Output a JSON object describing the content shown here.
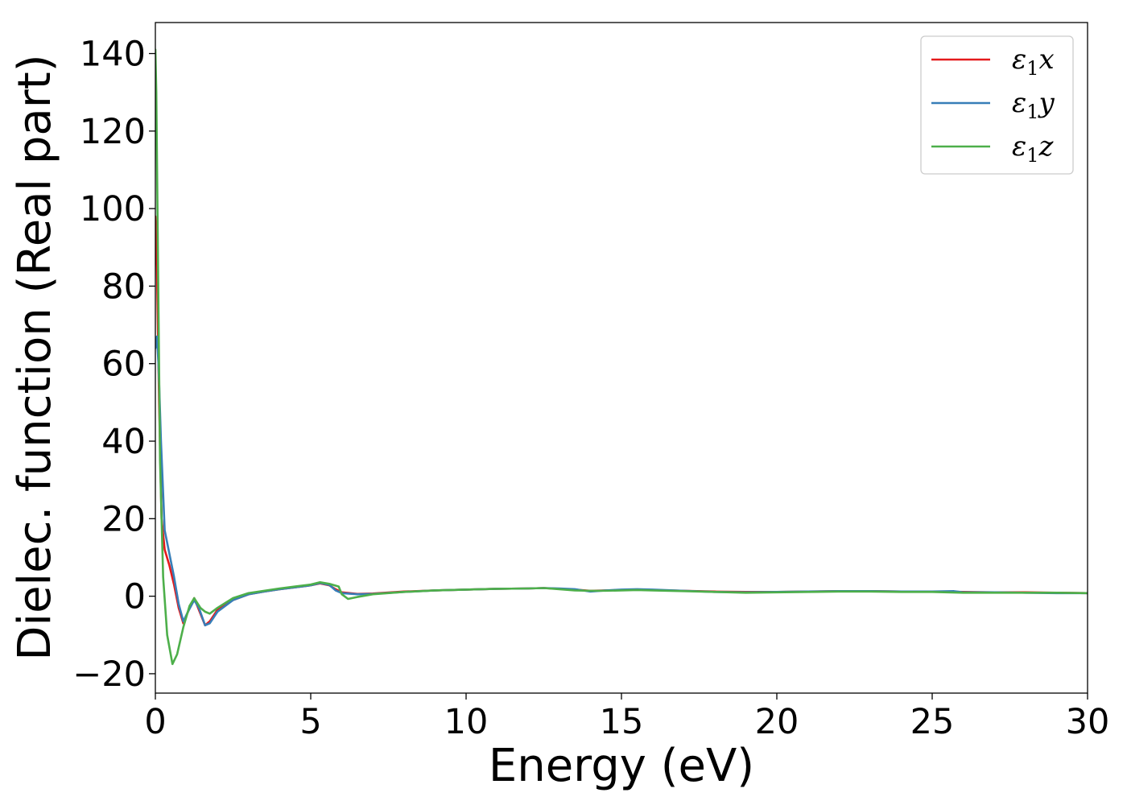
{
  "chart_data": {
    "type": "line",
    "title": "",
    "xlabel": "Energy (eV)",
    "ylabel": "Dielec. function (Real part)",
    "xlim": [
      0,
      30
    ],
    "ylim": [
      -25,
      148
    ],
    "xticks": [
      0,
      5,
      10,
      15,
      20,
      25,
      30
    ],
    "xtick_labels": [
      "0",
      "5",
      "10",
      "15",
      "20",
      "25",
      "30"
    ],
    "yticks": [
      -20,
      0,
      20,
      40,
      60,
      80,
      100,
      120,
      140
    ],
    "ytick_labels": [
      "−20",
      "0",
      "20",
      "40",
      "60",
      "80",
      "100",
      "120",
      "140"
    ],
    "grid": false,
    "legend_position": "top-right",
    "series": [
      {
        "name": "ε₁x",
        "legend_base": "ε",
        "legend_sub": "1",
        "legend_var": "x",
        "color": "#e41a1c",
        "points": [
          [
            0,
            98
          ],
          [
            0.05,
            85
          ],
          [
            0.12,
            50
          ],
          [
            0.2,
            20
          ],
          [
            0.3,
            12
          ],
          [
            0.45,
            8
          ],
          [
            0.6,
            3
          ],
          [
            0.75,
            -3
          ],
          [
            0.9,
            -7
          ],
          [
            1.05,
            -4
          ],
          [
            1.25,
            -0.5
          ],
          [
            1.4,
            -3.5
          ],
          [
            1.6,
            -7.5
          ],
          [
            1.75,
            -6.5
          ],
          [
            2.0,
            -3.5
          ],
          [
            2.5,
            -1
          ],
          [
            3.0,
            0.5
          ],
          [
            3.5,
            1.2
          ],
          [
            4.0,
            1.8
          ],
          [
            4.5,
            2.3
          ],
          [
            5.0,
            2.8
          ],
          [
            5.3,
            3.3
          ],
          [
            5.6,
            2.8
          ],
          [
            5.8,
            1.8
          ],
          [
            6.0,
            1.0
          ],
          [
            6.5,
            0.6
          ],
          [
            7,
            0.7
          ],
          [
            8,
            1.2
          ],
          [
            9,
            1.5
          ],
          [
            10,
            1.7
          ],
          [
            11,
            1.9
          ],
          [
            12,
            2.0
          ],
          [
            12.5,
            2.1
          ],
          [
            13,
            1.9
          ],
          [
            13.5,
            1.7
          ],
          [
            14,
            1.4
          ],
          [
            14.5,
            1.5
          ],
          [
            15,
            1.6
          ],
          [
            15.5,
            1.7
          ],
          [
            16,
            1.6
          ],
          [
            17,
            1.4
          ],
          [
            18,
            1.2
          ],
          [
            19,
            1.1
          ],
          [
            20,
            1.1
          ],
          [
            21,
            1.2
          ],
          [
            22,
            1.3
          ],
          [
            23,
            1.3
          ],
          [
            24,
            1.2
          ],
          [
            25,
            1.2
          ],
          [
            26,
            1.1
          ],
          [
            27,
            1.0
          ],
          [
            28,
            1.0
          ],
          [
            29,
            0.9
          ],
          [
            30,
            0.8
          ]
        ]
      },
      {
        "name": "ε₁y",
        "legend_base": "ε",
        "legend_sub": "1",
        "legend_var": "y",
        "color": "#377eb8",
        "points": [
          [
            0,
            64
          ],
          [
            0.05,
            67
          ],
          [
            0.1,
            60
          ],
          [
            0.18,
            40
          ],
          [
            0.3,
            17
          ],
          [
            0.45,
            11
          ],
          [
            0.6,
            5
          ],
          [
            0.75,
            -2
          ],
          [
            0.9,
            -6.5
          ],
          [
            1.05,
            -4
          ],
          [
            1.25,
            -1
          ],
          [
            1.4,
            -3
          ],
          [
            1.6,
            -7.5
          ],
          [
            1.75,
            -7
          ],
          [
            2.0,
            -4
          ],
          [
            2.5,
            -1
          ],
          [
            3.0,
            0.5
          ],
          [
            3.5,
            1.2
          ],
          [
            4.0,
            1.8
          ],
          [
            4.5,
            2.3
          ],
          [
            5.0,
            2.8
          ],
          [
            5.3,
            3.4
          ],
          [
            5.6,
            2.9
          ],
          [
            5.8,
            1.5
          ],
          [
            6.0,
            0.8
          ],
          [
            6.5,
            0.5
          ],
          [
            7,
            0.6
          ],
          [
            8,
            1.1
          ],
          [
            9,
            1.5
          ],
          [
            10,
            1.7
          ],
          [
            11,
            1.9
          ],
          [
            12,
            2.0
          ],
          [
            12.5,
            2.1
          ],
          [
            13,
            2.0
          ],
          [
            13.5,
            1.8
          ],
          [
            14,
            1.2
          ],
          [
            14.5,
            1.5
          ],
          [
            15,
            1.7
          ],
          [
            15.5,
            1.8
          ],
          [
            16,
            1.7
          ],
          [
            17,
            1.4
          ],
          [
            18,
            1.1
          ],
          [
            19,
            1.0
          ],
          [
            20,
            1.1
          ],
          [
            21,
            1.2
          ],
          [
            22,
            1.3
          ],
          [
            23,
            1.3
          ],
          [
            24,
            1.2
          ],
          [
            25,
            1.2
          ],
          [
            25.7,
            1.3
          ],
          [
            26,
            1.0
          ],
          [
            27,
            1.0
          ],
          [
            28,
            0.9
          ],
          [
            29,
            0.8
          ],
          [
            30,
            0.8
          ]
        ]
      },
      {
        "name": "ε₁z",
        "legend_base": "ε",
        "legend_sub": "1",
        "legend_var": "z",
        "color": "#4daf4a",
        "points": [
          [
            0,
            141
          ],
          [
            0.03,
            130
          ],
          [
            0.08,
            90
          ],
          [
            0.15,
            35
          ],
          [
            0.25,
            5
          ],
          [
            0.38,
            -10
          ],
          [
            0.55,
            -17.5
          ],
          [
            0.7,
            -15
          ],
          [
            0.9,
            -8
          ],
          [
            1.1,
            -2.5
          ],
          [
            1.25,
            -0.5
          ],
          [
            1.45,
            -3
          ],
          [
            1.6,
            -4
          ],
          [
            1.75,
            -4.5
          ],
          [
            2.0,
            -3
          ],
          [
            2.5,
            -0.5
          ],
          [
            3.0,
            0.8
          ],
          [
            3.5,
            1.4
          ],
          [
            4.0,
            2.0
          ],
          [
            4.5,
            2.5
          ],
          [
            5.0,
            3.0
          ],
          [
            5.3,
            3.6
          ],
          [
            5.6,
            3.2
          ],
          [
            5.9,
            2.5
          ],
          [
            6.0,
            0.5
          ],
          [
            6.2,
            -0.7
          ],
          [
            6.5,
            -0.2
          ],
          [
            7,
            0.5
          ],
          [
            8,
            1.1
          ],
          [
            9,
            1.5
          ],
          [
            10,
            1.7
          ],
          [
            11,
            1.9
          ],
          [
            12,
            2.0
          ],
          [
            12.5,
            2.1
          ],
          [
            13,
            1.8
          ],
          [
            13.5,
            1.5
          ],
          [
            14,
            1.4
          ],
          [
            14.5,
            1.4
          ],
          [
            15,
            1.5
          ],
          [
            15.5,
            1.6
          ],
          [
            16,
            1.5
          ],
          [
            17,
            1.3
          ],
          [
            18,
            1.1
          ],
          [
            19,
            0.9
          ],
          [
            20,
            1.0
          ],
          [
            21,
            1.1
          ],
          [
            22,
            1.2
          ],
          [
            23,
            1.2
          ],
          [
            24,
            1.1
          ],
          [
            25,
            1.1
          ],
          [
            26,
            0.9
          ],
          [
            27,
            0.9
          ],
          [
            28,
            0.9
          ],
          [
            29,
            0.9
          ],
          [
            30,
            0.8
          ]
        ]
      }
    ]
  }
}
